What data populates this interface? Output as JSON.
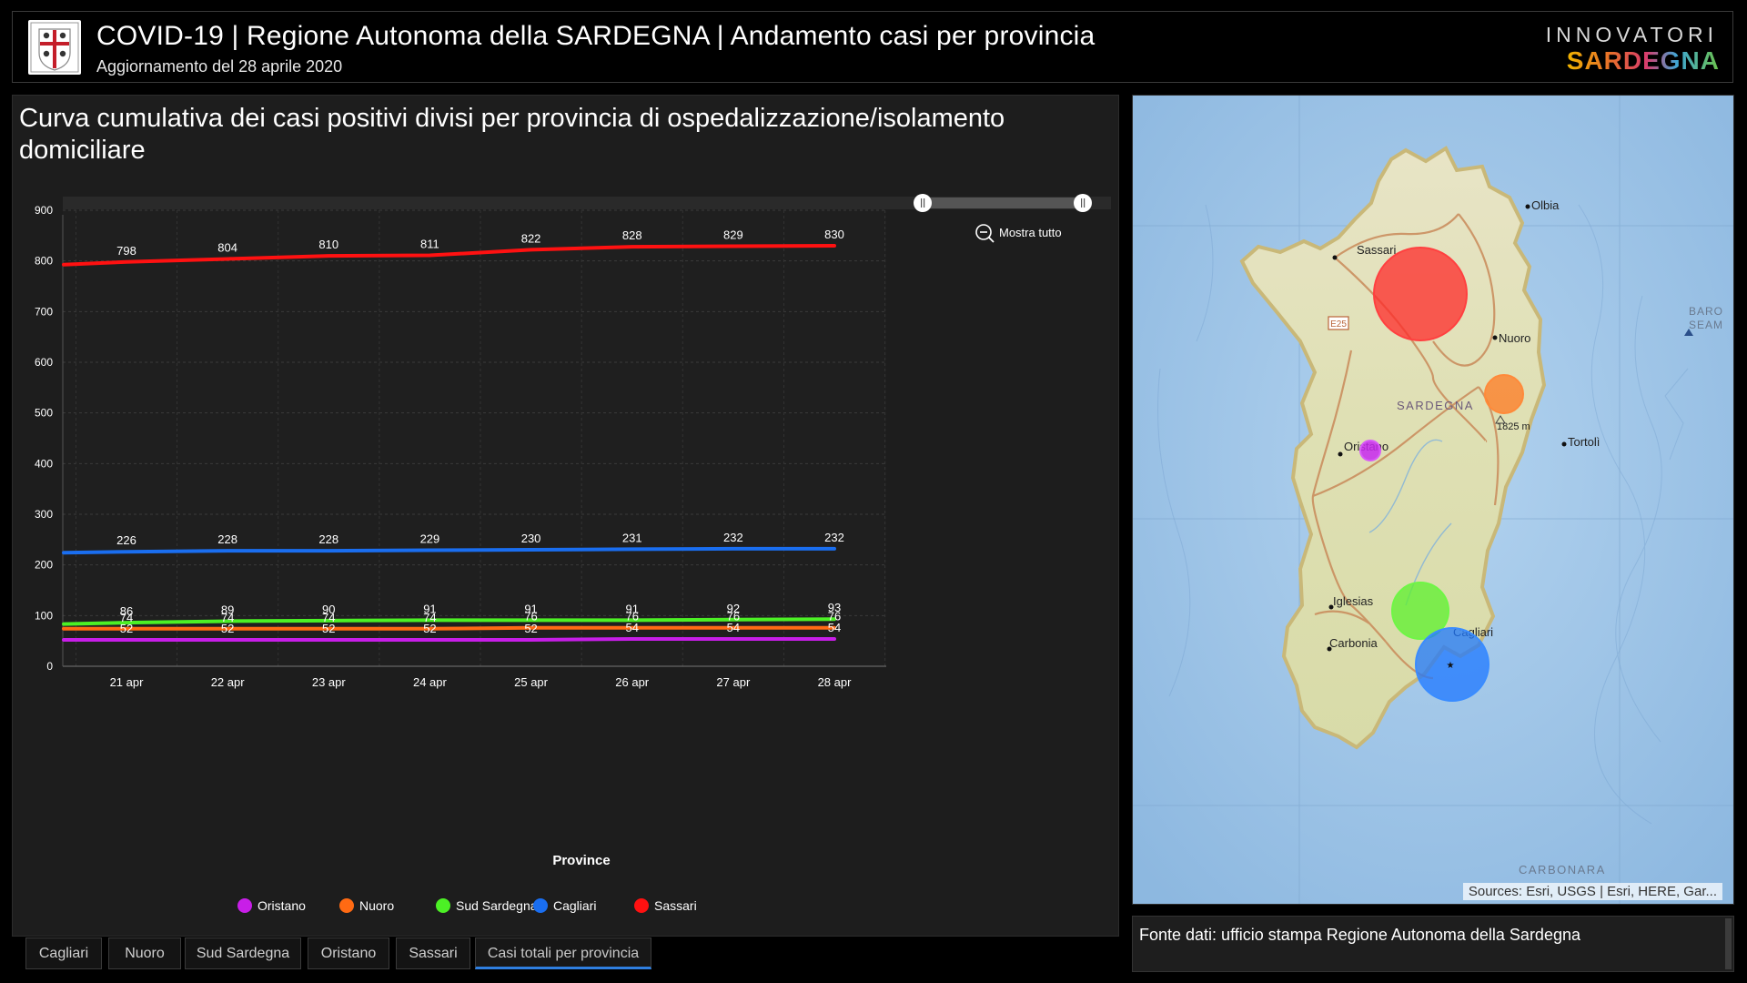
{
  "header": {
    "title": "COVID-19 | Regione Autonoma della SARDEGNA | Andamento casi per provincia",
    "subtitle": "Aggiornamento del 28 aprile 2020",
    "brand_top": "INNOVATORI",
    "brand_bottom": "SARDEGNA"
  },
  "chart_panel": {
    "title": "Curva cumulativa dei casi positivi divisi per provincia di ospedalizzazione/isolamento domiciliare",
    "zoom_label": "Mostra tutto"
  },
  "chart_data": {
    "type": "line",
    "categories": [
      "21 apr",
      "22 apr",
      "23 apr",
      "24 apr",
      "25 apr",
      "26 apr",
      "27 apr",
      "28 apr"
    ],
    "xlabel": "Province",
    "ylabel": "",
    "ylim": [
      0,
      900
    ],
    "yticks": [
      0,
      100,
      200,
      300,
      400,
      500,
      600,
      700,
      800,
      900
    ],
    "grid": true,
    "legend_position": "bottom",
    "series": [
      {
        "name": "Oristano",
        "color": "#c81ee8",
        "values": [
          52,
          52,
          52,
          52,
          52,
          54,
          54,
          54
        ]
      },
      {
        "name": "Nuoro",
        "color": "#ff6a13",
        "values": [
          74,
          74,
          74,
          74,
          76,
          76,
          76,
          76
        ]
      },
      {
        "name": "Sud Sardegna",
        "color": "#4cf025",
        "values": [
          86,
          89,
          90,
          91,
          91,
          91,
          92,
          93
        ]
      },
      {
        "name": "Cagliari",
        "color": "#1a6ef0",
        "values": [
          226,
          228,
          228,
          229,
          230,
          231,
          232,
          232
        ]
      },
      {
        "name": "Sassari",
        "color": "#ff1111",
        "values": [
          798,
          804,
          810,
          811,
          822,
          828,
          829,
          830
        ]
      }
    ]
  },
  "map": {
    "place_labels": [
      "Olbia",
      "Sassari",
      "Nuoro",
      "SARDEGNA",
      "1825 m",
      "Oristano",
      "Tortolì",
      "Iglesias",
      "Carbonia",
      "Cagliari",
      "E25",
      "CARBONARA",
      "BARO",
      "SEAM"
    ],
    "credit": "Sources: Esri, USGS | Esri, HERE, Gar..."
  },
  "source": {
    "text": "Fonte dati: ufficio stampa Regione Autonoma della Sardegna"
  },
  "tabs": [
    {
      "label": "Cagliari",
      "active": false
    },
    {
      "label": "Nuoro",
      "active": false
    },
    {
      "label": "Sud Sardegna",
      "active": false
    },
    {
      "label": "Oristano",
      "active": false
    },
    {
      "label": "Sassari",
      "active": false
    },
    {
      "label": "Casi totali per provincia",
      "active": true
    }
  ]
}
